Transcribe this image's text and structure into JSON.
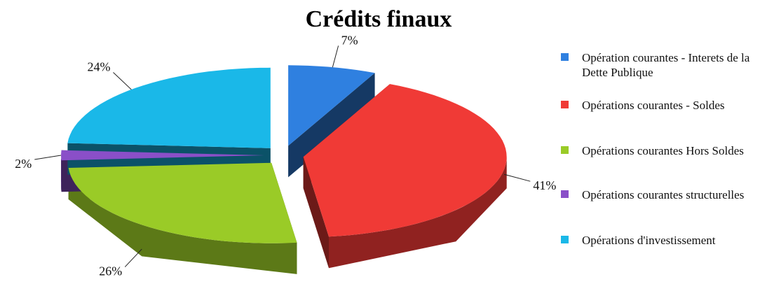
{
  "chart_data": {
    "type": "pie",
    "title": "Crédits finaux",
    "categories": [
      "Opération courantes - Interets de la Dette Publique",
      "Opérations courantes - Soldes",
      "Opérations courantes Hors Soldes",
      "Opérations courantes structurelles",
      "Opérations d'investissement"
    ],
    "values": [
      7,
      41,
      26,
      2,
      24
    ],
    "value_labels": [
      "7%",
      "41%",
      "26%",
      "2%",
      "24%"
    ],
    "colors": [
      "#2f80e0",
      "#f03a36",
      "#9acb27",
      "#8a4fc8",
      "#1ab8e8"
    ],
    "legend": "right"
  }
}
